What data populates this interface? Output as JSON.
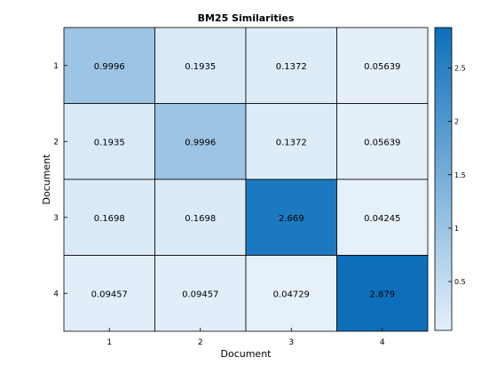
{
  "chart_data": {
    "type": "heatmap",
    "title": "BM25 Similarities",
    "xlabel": "Document",
    "ylabel": "Document",
    "x_categories": [
      "1",
      "2",
      "3",
      "4"
    ],
    "y_categories": [
      "1",
      "2",
      "3",
      "4"
    ],
    "values": [
      [
        0.9996,
        0.1935,
        0.1372,
        0.05639
      ],
      [
        0.1935,
        0.9996,
        0.1372,
        0.05639
      ],
      [
        0.1698,
        0.1698,
        2.669,
        0.04245
      ],
      [
        0.09457,
        0.09457,
        0.04729,
        2.879
      ]
    ],
    "cell_labels": [
      [
        "0.9996",
        "0.1935",
        "0.1372",
        "0.05639"
      ],
      [
        "0.1935",
        "0.9996",
        "0.1372",
        "0.05639"
      ],
      [
        "0.1698",
        "0.1698",
        "2.669",
        "0.04245"
      ],
      [
        "0.09457",
        "0.09457",
        "0.04729",
        "2.879"
      ]
    ],
    "colorbar": {
      "range": [
        0.04245,
        2.879
      ],
      "ticks": [
        0.5,
        1,
        1.5,
        2,
        2.5
      ],
      "tick_labels": [
        "0.5",
        "1",
        "1.5",
        "2",
        "2.5"
      ]
    },
    "colors": {
      "low": "#e5f0fa",
      "high": "#0d6fba"
    },
    "grid": true
  }
}
